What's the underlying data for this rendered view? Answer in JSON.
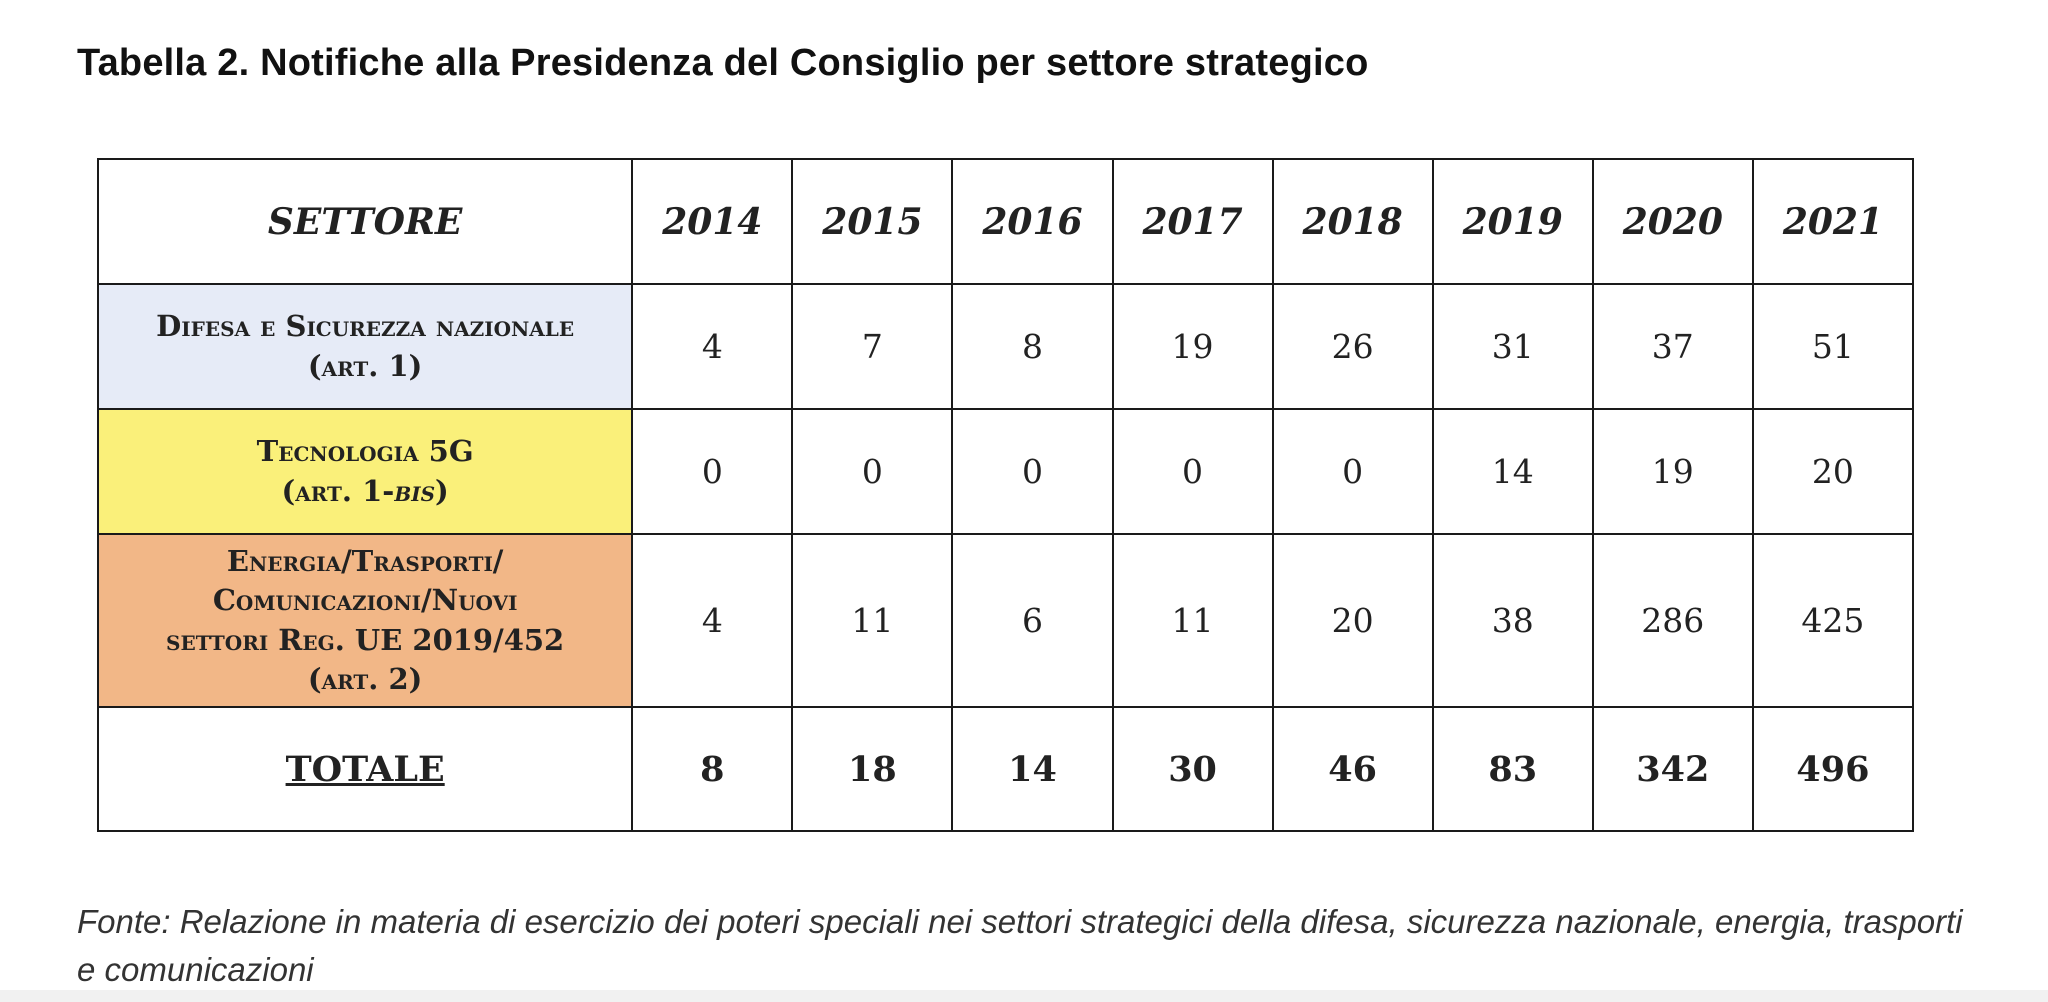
{
  "title": "Tabella 2. Notifiche alla Presidenza del Consiglio per settore strategico",
  "table": {
    "header": {
      "sector": "SETTORE",
      "years": [
        "2014",
        "2015",
        "2016",
        "2017",
        "2018",
        "2019",
        "2020",
        "2021"
      ]
    },
    "rows": [
      {
        "line1": "Difesa e Sicurezza nazionale",
        "line2": "(art. 1)",
        "color": "#e6ebf7",
        "values": [
          "4",
          "7",
          "8",
          "19",
          "26",
          "31",
          "37",
          "51"
        ]
      },
      {
        "line1": "Tecnologia 5G",
        "line2_prefix": "(art. 1-",
        "line2_italic": "bis",
        "line2_suffix": ")",
        "color": "#faf07a",
        "values": [
          "0",
          "0",
          "0",
          "0",
          "0",
          "14",
          "19",
          "20"
        ]
      },
      {
        "line1": "Energia/Trasporti/",
        "line2": "Comunicazioni/Nuovi",
        "line3": "settori Reg. UE 2019/452",
        "line4": "(art. 2)",
        "color": "#f2b787",
        "values": [
          "4",
          "11",
          "6",
          "11",
          "20",
          "38",
          "286",
          "425"
        ]
      }
    ],
    "total": {
      "label": "TOTALE",
      "values": [
        "8",
        "18",
        "14",
        "30",
        "46",
        "83",
        "342",
        "496"
      ]
    }
  },
  "source": "Fonte: Relazione in materia di esercizio dei poteri speciali nei settori strategici della difesa, sicurezza nazionale, energia, trasporti e comunicazioni"
}
